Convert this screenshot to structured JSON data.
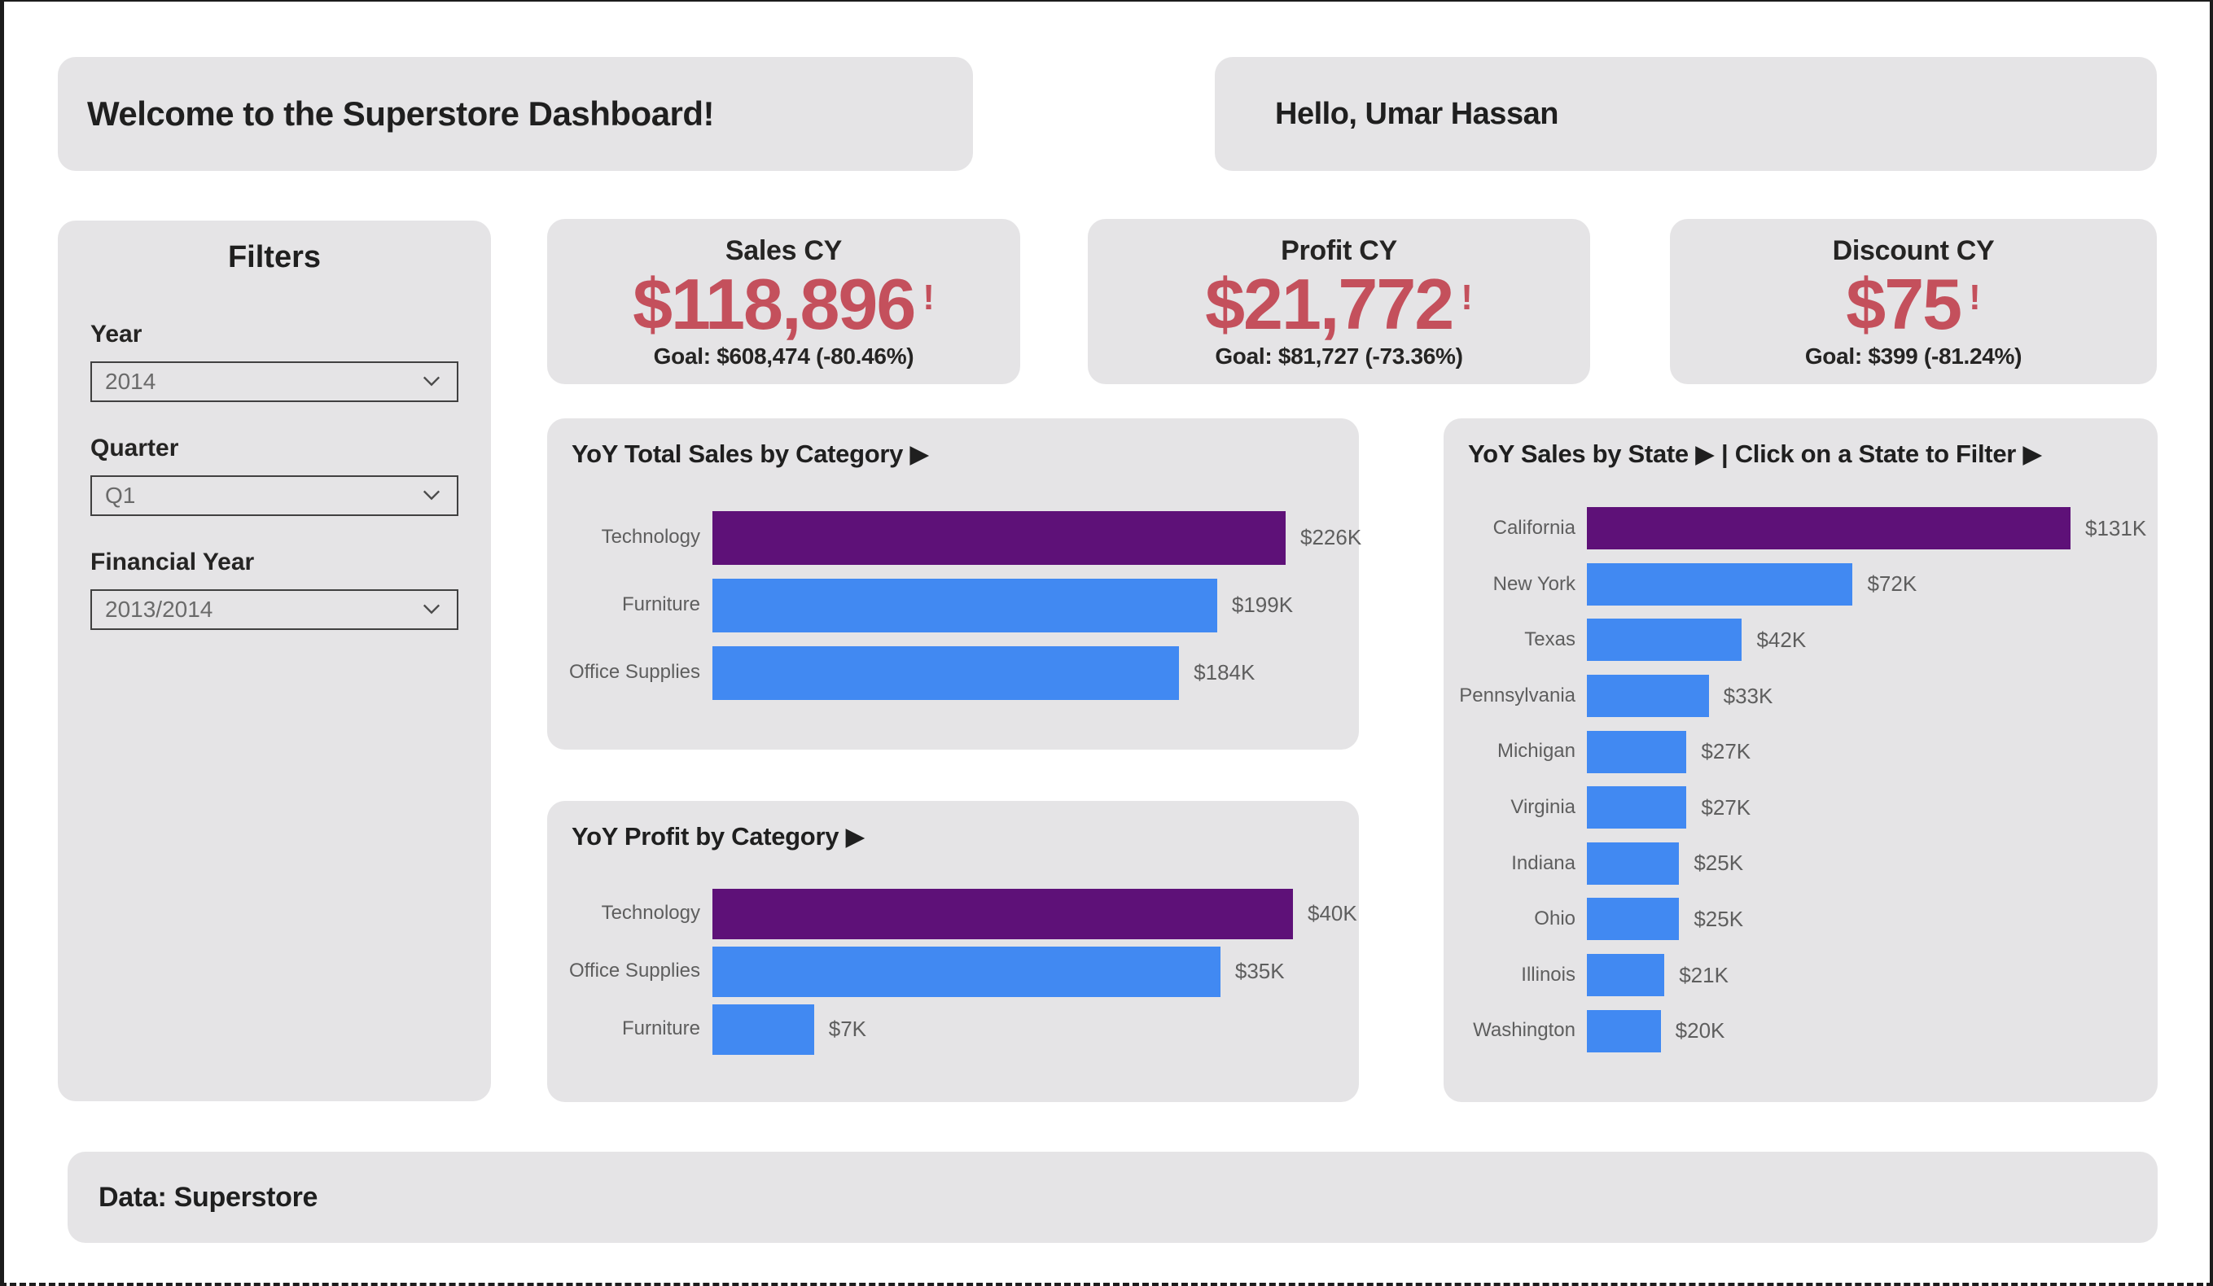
{
  "header": {
    "welcome": "Welcome to the Superstore Dashboard!",
    "greeting": "Hello, Umar Hassan"
  },
  "filters": {
    "title": "Filters",
    "items": [
      {
        "label": "Year",
        "value": "2014"
      },
      {
        "label": "Quarter",
        "value": "Q1"
      },
      {
        "label": "Financial Year",
        "value": "2013/2014"
      }
    ]
  },
  "kpis": [
    {
      "title": "Sales CY",
      "value": "$118,896",
      "alert": "!",
      "goal": "Goal: $608,474 (-80.46%)"
    },
    {
      "title": "Profit CY",
      "value": "$21,772",
      "alert": "!",
      "goal": "Goal: $81,727 (-73.36%)"
    },
    {
      "title": "Discount CY",
      "value": "$75",
      "alert": "!",
      "goal": "Goal: $399 (-81.24%)"
    }
  ],
  "chart_data": [
    {
      "type": "bar",
      "orientation": "horizontal",
      "title": "YoY Total Sales by Category ▶",
      "categories": [
        "Technology",
        "Furniture",
        "Office Supplies"
      ],
      "values": [
        226,
        199,
        184
      ],
      "value_labels": [
        "$226K",
        "$199K",
        "$184K"
      ],
      "unit": "USD thousands",
      "xlabel": "",
      "ylabel": "",
      "grid": false,
      "legend": "none",
      "bar_colors": [
        "#5E1178",
        "#4189F2",
        "#4189F2"
      ]
    },
    {
      "type": "bar",
      "orientation": "horizontal",
      "title": "YoY Profit by Category ▶",
      "categories": [
        "Technology",
        "Office Supplies",
        "Furniture"
      ],
      "values": [
        40,
        35,
        7
      ],
      "value_labels": [
        "$40K",
        "$35K",
        "$7K"
      ],
      "unit": "USD thousands",
      "xlabel": "",
      "ylabel": "",
      "grid": false,
      "legend": "none",
      "bar_colors": [
        "#5E1178",
        "#4189F2",
        "#4189F2"
      ]
    },
    {
      "type": "bar",
      "orientation": "horizontal",
      "title": "YoY Sales by State ▶ | Click on a State to Filter ▶",
      "categories": [
        "California",
        "New York",
        "Texas",
        "Pennsylvania",
        "Michigan",
        "Virginia",
        "Indiana",
        "Ohio",
        "Illinois",
        "Washington"
      ],
      "values": [
        131,
        72,
        42,
        33,
        27,
        27,
        25,
        25,
        21,
        20
      ],
      "value_labels": [
        "$131K",
        "$72K",
        "$42K",
        "$33K",
        "$27K",
        "$27K",
        "$25K",
        "$25K",
        "$21K",
        "$20K"
      ],
      "unit": "USD thousands",
      "xlabel": "",
      "ylabel": "",
      "grid": false,
      "legend": "none",
      "bar_colors": [
        "#5E1178",
        "#4189F2",
        "#4189F2",
        "#4189F2",
        "#4189F2",
        "#4189F2",
        "#4189F2",
        "#4189F2",
        "#4189F2",
        "#4189F2"
      ]
    }
  ],
  "footer": {
    "text": "Data: Superstore"
  },
  "colors": {
    "accent_red": "#C4505C",
    "bar_blue": "#4189F2",
    "bar_purple": "#5E1178",
    "card_bg": "#E5E4E6",
    "text_dark": "#252423",
    "text_gray": "#5E5E5E"
  }
}
